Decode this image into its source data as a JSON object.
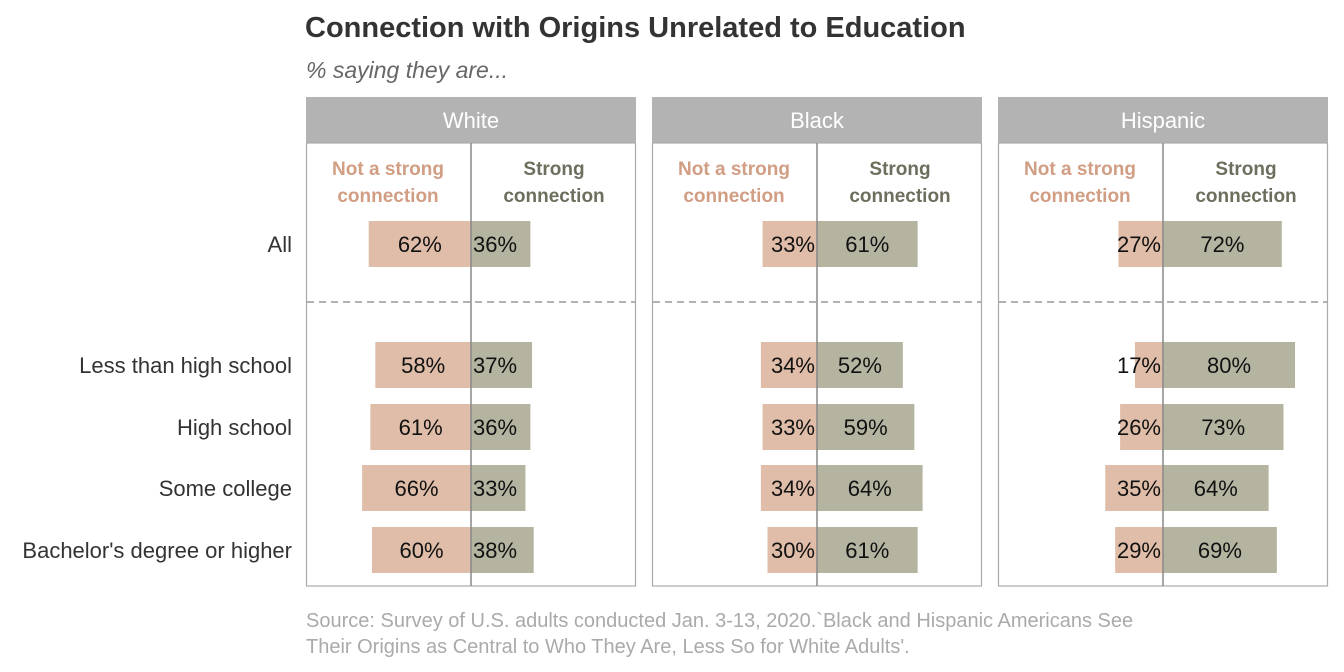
{
  "title": "Connection with Origins Unrelated to Education",
  "subtitle": "% saying they are...",
  "source_line1": "Source: Survey of U.S. adults conducted Jan. 3-13, 2020.`Black and Hispanic Americans See",
  "source_line2": "Their Origins as Central to Who They Are, Less So for White Adults'.",
  "colors": {
    "not_strong": "#dfbda8",
    "strong": "#b4b4a0",
    "header_bg": "#b3b3b3",
    "not_strong_text": "#d19e84",
    "strong_text": "#6e6e5e",
    "frame": "#aaaaaa",
    "divider": "#999999"
  },
  "chart_data": {
    "type": "bar",
    "orientation": "horizontal-diverging",
    "categories": [
      "All",
      "Less than high school",
      "High school",
      "Some college",
      "Bachelor's degree or higher"
    ],
    "column_headers": {
      "not_strong": [
        "Not a strong",
        "connection"
      ],
      "strong": [
        "Strong",
        "connection"
      ]
    },
    "panels": [
      {
        "name": "White",
        "series": [
          {
            "name": "Not a strong connection",
            "values": [
              62,
              58,
              61,
              66,
              60
            ]
          },
          {
            "name": "Strong connection",
            "values": [
              36,
              37,
              36,
              33,
              38
            ]
          }
        ]
      },
      {
        "name": "Black",
        "series": [
          {
            "name": "Not a strong connection",
            "values": [
              33,
              34,
              33,
              34,
              30
            ]
          },
          {
            "name": "Strong connection",
            "values": [
              61,
              52,
              59,
              64,
              61
            ]
          }
        ]
      },
      {
        "name": "Hispanic",
        "series": [
          {
            "name": "Not a strong connection",
            "values": [
              27,
              17,
              26,
              35,
              29
            ]
          },
          {
            "name": "Strong connection",
            "values": [
              72,
              80,
              73,
              64,
              69
            ]
          }
        ]
      }
    ],
    "value_suffix": "%",
    "legend": "none",
    "grid": false
  }
}
